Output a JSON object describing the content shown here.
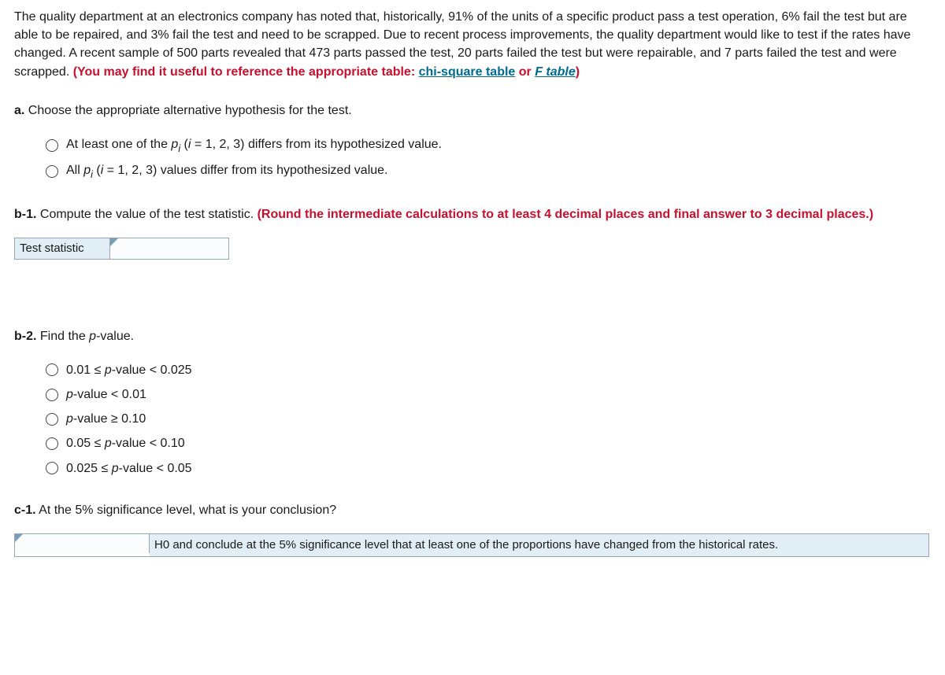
{
  "problem": {
    "body_plain_1": "The quality department at an electronics company has noted that, historically, 91% of the units of a specific product pass a test operation, 6% fail the test but are able to be repaired, and 3% fail the test and need to be scrapped. Due to recent process improvements, the quality department would like to test if the rates have changed. A recent sample of 500 parts revealed that 473 parts passed the test, 20 parts failed the test but were repairable, and 7 parts failed the test and were scrapped. ",
    "red_lead": "(You may find it useful to reference the appropriate table: ",
    "link_chi": "chi-square table",
    "red_or": " or ",
    "link_f": "F table",
    "red_close": ")"
  },
  "a": {
    "label": "a.",
    "text": " Choose the appropriate alternative hypothesis for the test.",
    "options": {
      "opt1_pre": "At least one of the ",
      "opt1_p": "p",
      "opt1_i": "i",
      "opt1_post": " (i = 1, 2, 3) differs from its hypothesized value.",
      "opt2_pre": "All ",
      "opt2_p": "p",
      "opt2_i": "i",
      "opt2_post": " (i = 1, 2, 3) values differ from its hypothesized value."
    }
  },
  "b1": {
    "label": "b-1.",
    "text": " Compute the value of the test statistic. ",
    "red": "(Round the intermediate calculations to at least 4 decimal places and final answer to 3 decimal places.)",
    "stat_label": "Test statistic"
  },
  "b2": {
    "label": "b-2.",
    "text_pre": " Find the ",
    "p": "p",
    "text_post": "-value.",
    "options": {
      "o1_a": "0.01 ≤ ",
      "o1_p": "p",
      "o1_b": "-value < 0.025",
      "o2_p": "p",
      "o2_b": "-value < 0.01",
      "o3_p": "p",
      "o3_b": "-value ≥ 0.10",
      "o4_a": "0.05 ≤ ",
      "o4_p": "p",
      "o4_b": "-value < 0.10",
      "o5_a": "0.025 ≤ ",
      "o5_p": "p",
      "o5_b": "-value < 0.05"
    }
  },
  "c1": {
    "label": "c-1.",
    "text": " At the 5% significance level, what is your conclusion?",
    "conclusion": "H0 and conclude at the 5% significance level that at least one of the proportions have changed from the historical rates."
  }
}
